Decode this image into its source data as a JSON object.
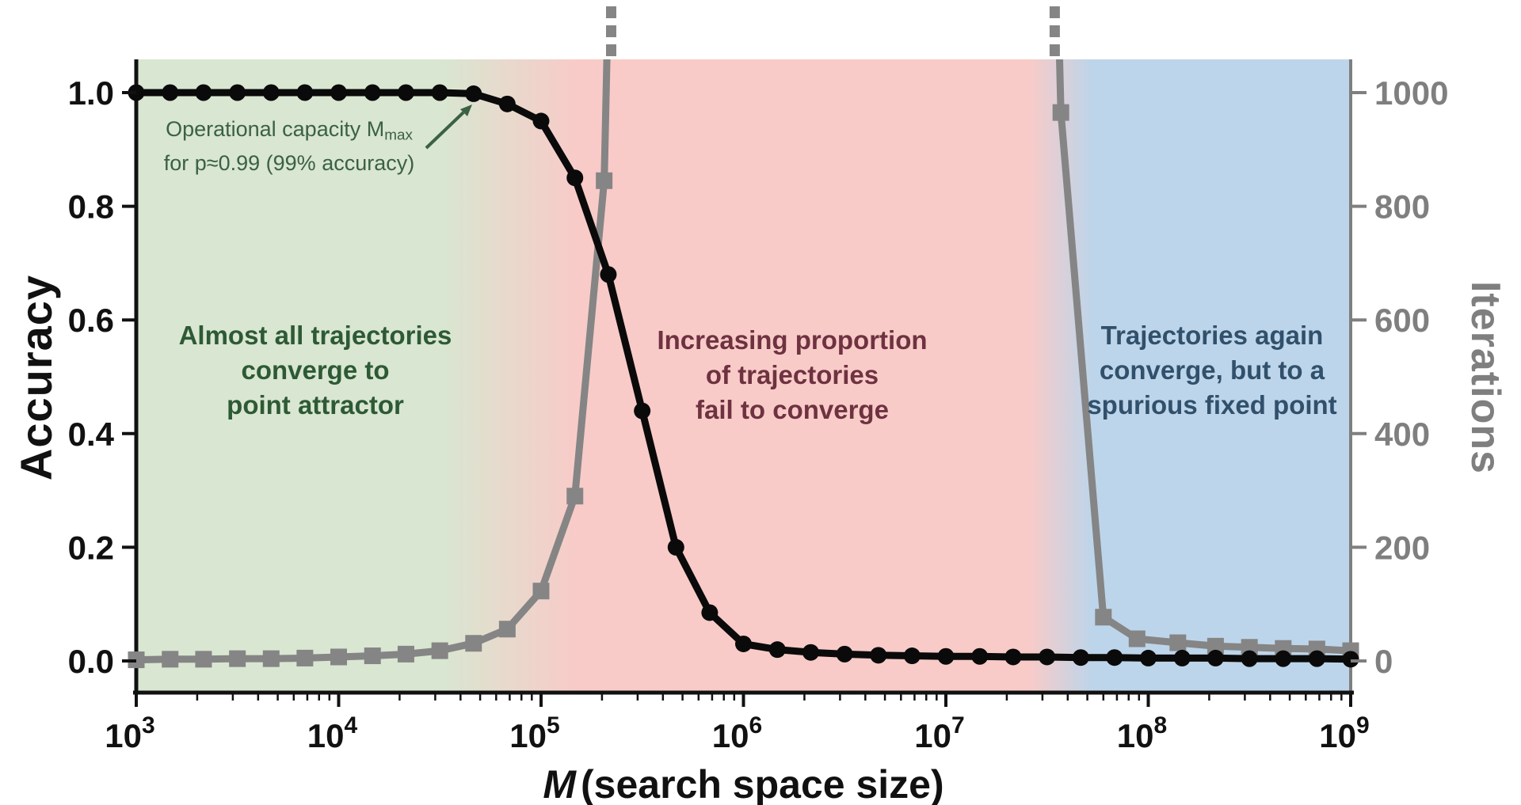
{
  "chart_data": {
    "type": "line",
    "title": "",
    "x_axis": {
      "label_main": "M",
      "label_rest": "(search space size)",
      "scale": "log10",
      "min_exponent": 3,
      "max_exponent": 9,
      "major_tick_exponents": [
        3,
        4,
        5,
        6,
        7,
        8,
        9
      ],
      "minor_tick_multiples": [
        2,
        3,
        4,
        5,
        6,
        7,
        8,
        9
      ],
      "tick_color": "#111111"
    },
    "left_axis": {
      "label": "Accuracy",
      "color": "#111111",
      "tick_labels": [
        "1.0",
        "0.8",
        "0.6",
        "0.4",
        "0.2",
        "0.0"
      ],
      "tick_values": [
        1.0,
        0.8,
        0.6,
        0.4,
        0.2,
        0.0
      ],
      "min": 0,
      "max": 1
    },
    "right_axis": {
      "label": "Iterations",
      "color": "#7f7f7f",
      "tick_labels": [
        "1000",
        "800",
        "600",
        "400",
        "200",
        "0"
      ],
      "tick_values": [
        1000,
        800,
        600,
        400,
        200,
        0
      ],
      "min": 0,
      "max": 1000
    },
    "series": [
      {
        "name": "Accuracy",
        "axis": "left",
        "color": "#0a0a0a",
        "marker": "circle",
        "line_width": 9,
        "marker_size": 21,
        "points": [
          [
            1000,
            1.0
          ],
          [
            1470,
            1.0
          ],
          [
            2150,
            1.0
          ],
          [
            3160,
            1.0
          ],
          [
            4640,
            1.0
          ],
          [
            6810,
            1.0
          ],
          [
            10000,
            1.0
          ],
          [
            14700,
            1.0
          ],
          [
            21500,
            1.0
          ],
          [
            31600,
            1.0
          ],
          [
            46400,
            0.998
          ],
          [
            68100,
            0.98
          ],
          [
            100000,
            0.95
          ],
          [
            147000,
            0.85
          ],
          [
            215000,
            0.68
          ],
          [
            316000,
            0.44
          ],
          [
            464000,
            0.2
          ],
          [
            681000,
            0.085
          ],
          [
            1000000,
            0.03
          ],
          [
            1470000,
            0.02
          ],
          [
            2150000,
            0.015
          ],
          [
            3160000,
            0.012
          ],
          [
            4640000,
            0.01
          ],
          [
            6810000,
            0.009
          ],
          [
            10000000,
            0.008
          ],
          [
            14700000,
            0.008
          ],
          [
            21500000,
            0.007
          ],
          [
            31600000,
            0.007
          ],
          [
            46400000,
            0.006
          ],
          [
            68100000,
            0.006
          ],
          [
            100000000,
            0.005
          ],
          [
            147000000,
            0.005
          ],
          [
            215000000,
            0.005
          ],
          [
            316000000,
            0.004
          ],
          [
            464000000,
            0.004
          ],
          [
            681000000,
            0.004
          ],
          [
            1000000000,
            0.003
          ]
        ]
      },
      {
        "name": "Iterations",
        "axis": "right",
        "color": "#858585",
        "marker": "square",
        "line_width": 9,
        "marker_size": 21,
        "off_scale_note": "iterations exceed 1000 (off scale, dashed) between ~2.2e5 and ~3.5e7",
        "segments": [
          {
            "exits_top_at_M": 222000,
            "points": [
              [
                1000,
                2
              ],
              [
                1470,
                3
              ],
              [
                2150,
                3
              ],
              [
                3160,
                4
              ],
              [
                4640,
                4
              ],
              [
                6810,
                5
              ],
              [
                10000,
                7
              ],
              [
                14700,
                9
              ],
              [
                21500,
                12
              ],
              [
                31600,
                18
              ],
              [
                46400,
                31
              ],
              [
                68100,
                56
              ],
              [
                100000,
                123
              ],
              [
                147000,
                290
              ],
              [
                205000,
                845
              ]
            ]
          },
          {
            "enters_top_at_M": 34500000,
            "points": [
              [
                37000000,
                965
              ],
              [
                60000000,
                77
              ],
              [
                88000000,
                39
              ],
              [
                140000000,
                32
              ],
              [
                215000000,
                26
              ],
              [
                316000000,
                24
              ],
              [
                464000000,
                22
              ],
              [
                681000000,
                21
              ],
              [
                1000000000,
                18
              ]
            ]
          }
        ]
      }
    ],
    "regions": [
      {
        "fill": "#d9e6d1",
        "text_color": "#2d5a35",
        "label_lines": [
          "Almost all trajectories",
          "converge to",
          "point attractor"
        ],
        "from_M": 1000,
        "solid_to_M": 33000
      },
      {
        "fill": "#f8cbc8",
        "text_color": "#6e3240",
        "label_lines": [
          "Increasing proportion",
          "of trajectories",
          "fail to converge"
        ],
        "solid_from_M": 150000,
        "solid_to_M": 26000000
      },
      {
        "fill": "#bdd5ea",
        "text_color": "#31506b",
        "label_lines": [
          "Trajectories again",
          "converge, but to a",
          "spurious fixed point"
        ],
        "solid_from_M": 53000000,
        "to_M": 1000000000
      }
    ]
  },
  "annotations": {
    "capacity": {
      "line1_pre": "Operational capacity M",
      "line1_sub": "max",
      "line2": "for p≈0.99 (99% accuracy)",
      "color": "#3a6143",
      "points_to_M": 50000
    }
  }
}
